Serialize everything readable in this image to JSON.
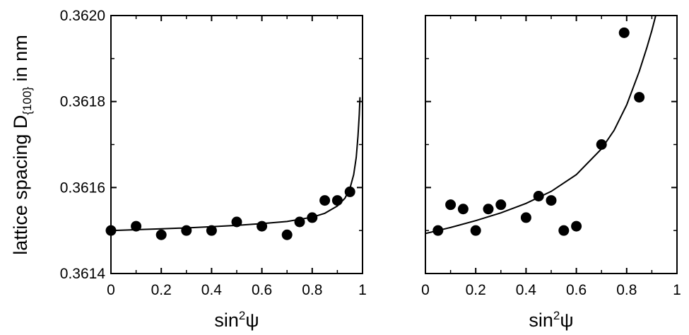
{
  "chart_data": [
    {
      "type": "scatter",
      "title": "",
      "xlabel": "sin²ψ",
      "ylabel": "lattice spacing D{100} in nm",
      "xlim": [
        0,
        1
      ],
      "ylim": [
        0.3614,
        0.362
      ],
      "x_ticks": [
        "0",
        "0.2",
        "0.4",
        "0.6",
        "0.8",
        "1"
      ],
      "x_tick_values": [
        0,
        0.2,
        0.4,
        0.6,
        0.8,
        1
      ],
      "y_ticks": [
        "0.3614",
        "0.3616",
        "0.3618",
        "0.3620"
      ],
      "y_tick_values": [
        0.3614,
        0.3616,
        0.3618,
        0.362
      ],
      "grid": false,
      "points": [
        {
          "x": 0.0,
          "y": 0.3615
        },
        {
          "x": 0.1,
          "y": 0.36151
        },
        {
          "x": 0.2,
          "y": 0.36149
        },
        {
          "x": 0.3,
          "y": 0.3615
        },
        {
          "x": 0.4,
          "y": 0.3615
        },
        {
          "x": 0.5,
          "y": 0.36152
        },
        {
          "x": 0.6,
          "y": 0.36151
        },
        {
          "x": 0.7,
          "y": 0.36149
        },
        {
          "x": 0.75,
          "y": 0.36152
        },
        {
          "x": 0.8,
          "y": 0.36153
        },
        {
          "x": 0.85,
          "y": 0.36157
        },
        {
          "x": 0.9,
          "y": 0.36157
        },
        {
          "x": 0.95,
          "y": 0.36159
        }
      ],
      "fit_curve": [
        {
          "x": 0.0,
          "y": 0.3615
        },
        {
          "x": 0.1,
          "y": 0.361502
        },
        {
          "x": 0.2,
          "y": 0.361504
        },
        {
          "x": 0.3,
          "y": 0.361506
        },
        {
          "x": 0.4,
          "y": 0.361509
        },
        {
          "x": 0.5,
          "y": 0.361512
        },
        {
          "x": 0.6,
          "y": 0.361516
        },
        {
          "x": 0.7,
          "y": 0.361521
        },
        {
          "x": 0.8,
          "y": 0.361531
        },
        {
          "x": 0.85,
          "y": 0.36154
        },
        {
          "x": 0.9,
          "y": 0.361557
        },
        {
          "x": 0.93,
          "y": 0.361575
        },
        {
          "x": 0.95,
          "y": 0.361598
        },
        {
          "x": 0.965,
          "y": 0.36163
        },
        {
          "x": 0.975,
          "y": 0.36167
        },
        {
          "x": 0.982,
          "y": 0.36172
        },
        {
          "x": 0.987,
          "y": 0.36177
        },
        {
          "x": 0.99,
          "y": 0.36181
        }
      ]
    },
    {
      "type": "scatter",
      "title": "",
      "xlabel": "sin²ψ",
      "ylabel": "",
      "xlim": [
        0,
        1
      ],
      "ylim": [
        0.3614,
        0.362
      ],
      "x_ticks": [
        "0",
        "0.2",
        "0.4",
        "0.6",
        "0.8",
        "1"
      ],
      "x_tick_values": [
        0,
        0.2,
        0.4,
        0.6,
        0.8,
        1
      ],
      "grid": false,
      "points": [
        {
          "x": 0.05,
          "y": 0.3615
        },
        {
          "x": 0.1,
          "y": 0.36156
        },
        {
          "x": 0.15,
          "y": 0.36155
        },
        {
          "x": 0.2,
          "y": 0.3615
        },
        {
          "x": 0.25,
          "y": 0.36155
        },
        {
          "x": 0.3,
          "y": 0.36156
        },
        {
          "x": 0.4,
          "y": 0.36153
        },
        {
          "x": 0.45,
          "y": 0.36158
        },
        {
          "x": 0.5,
          "y": 0.36157
        },
        {
          "x": 0.55,
          "y": 0.3615
        },
        {
          "x": 0.6,
          "y": 0.36151
        },
        {
          "x": 0.7,
          "y": 0.3617
        },
        {
          "x": 0.79,
          "y": 0.36196
        },
        {
          "x": 0.85,
          "y": 0.36181
        }
      ],
      "fit_curve": [
        {
          "x": 0.0,
          "y": 0.361493
        },
        {
          "x": 0.1,
          "y": 0.361507
        },
        {
          "x": 0.2,
          "y": 0.361523
        },
        {
          "x": 0.3,
          "y": 0.361541
        },
        {
          "x": 0.4,
          "y": 0.361563
        },
        {
          "x": 0.5,
          "y": 0.361591
        },
        {
          "x": 0.6,
          "y": 0.36163
        },
        {
          "x": 0.7,
          "y": 0.36169
        },
        {
          "x": 0.75,
          "y": 0.361733
        },
        {
          "x": 0.8,
          "y": 0.361792
        },
        {
          "x": 0.85,
          "y": 0.36187
        },
        {
          "x": 0.88,
          "y": 0.361925
        },
        {
          "x": 0.9,
          "y": 0.361965
        },
        {
          "x": 0.92,
          "y": 0.36201
        }
      ]
    }
  ]
}
